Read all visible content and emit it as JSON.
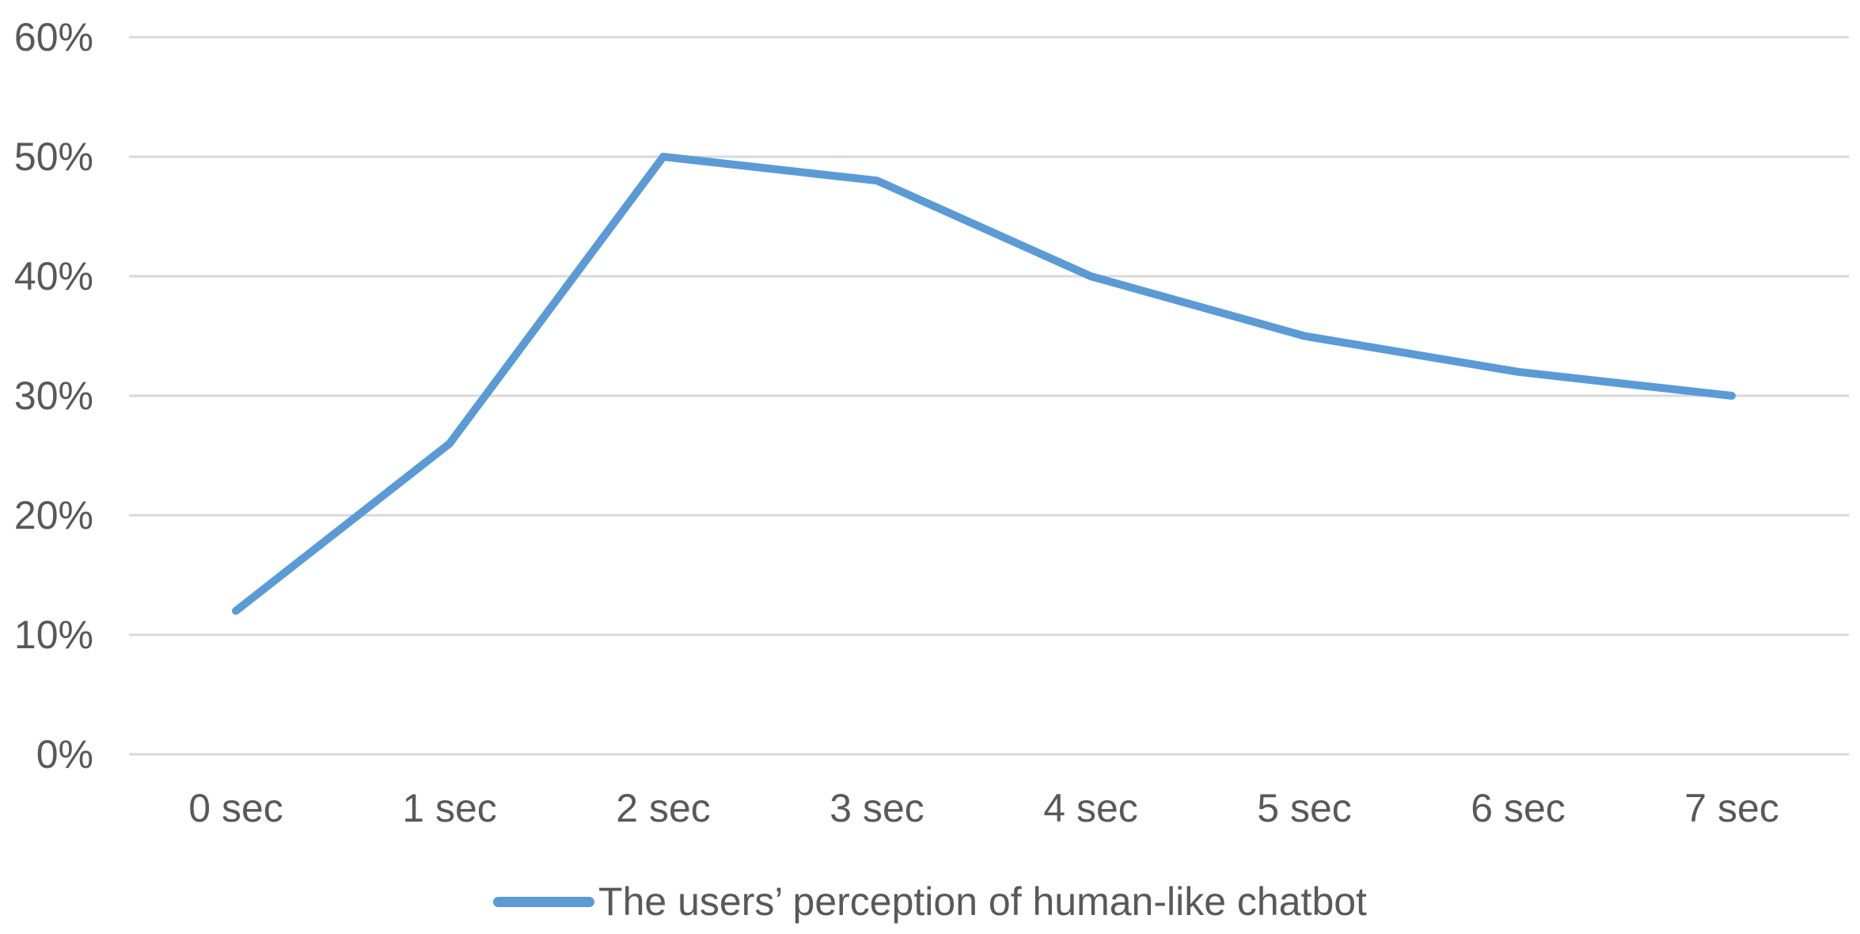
{
  "chart_data": {
    "type": "line",
    "categories": [
      "0 sec",
      "1 sec",
      "2 sec",
      "3 sec",
      "4 sec",
      "5 sec",
      "6 sec",
      "7 sec"
    ],
    "series": [
      {
        "name": "The users’ perception of human-like chatbot",
        "values": [
          12,
          26,
          50,
          48,
          40,
          35,
          32,
          30
        ]
      }
    ],
    "title": "",
    "xlabel": "",
    "ylabel": "",
    "ylim": [
      0,
      60
    ],
    "ytick_step": 10,
    "ytick_labels": [
      "0%",
      "10%",
      "20%",
      "30%",
      "40%",
      "50%",
      "60%"
    ],
    "grid": "horizontal-only",
    "legend_position": "bottom-center",
    "line_color": "#5B9BD5",
    "gridline_color": "#D9D9D9",
    "label_color": "#595959"
  },
  "legend": {
    "label": "The users’ perception of human-like chatbot"
  }
}
